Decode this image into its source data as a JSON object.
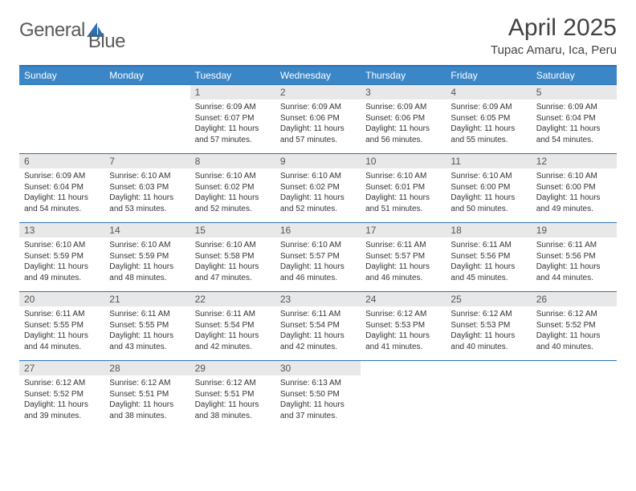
{
  "brand": {
    "word1": "General",
    "word2": "Blue"
  },
  "title": "April 2025",
  "location": "Tupac Amaru, Ica, Peru",
  "colors": {
    "header_bg": "#3b86c7",
    "header_text": "#ffffff",
    "border": "#2a72b5",
    "daynum_bg": "#e8e8e8",
    "text": "#333333"
  },
  "weekdays": [
    "Sunday",
    "Monday",
    "Tuesday",
    "Wednesday",
    "Thursday",
    "Friday",
    "Saturday"
  ],
  "weeks": [
    [
      null,
      null,
      {
        "n": "1",
        "sr": "6:09 AM",
        "ss": "6:07 PM",
        "dl": "11 hours and 57 minutes."
      },
      {
        "n": "2",
        "sr": "6:09 AM",
        "ss": "6:06 PM",
        "dl": "11 hours and 57 minutes."
      },
      {
        "n": "3",
        "sr": "6:09 AM",
        "ss": "6:06 PM",
        "dl": "11 hours and 56 minutes."
      },
      {
        "n": "4",
        "sr": "6:09 AM",
        "ss": "6:05 PM",
        "dl": "11 hours and 55 minutes."
      },
      {
        "n": "5",
        "sr": "6:09 AM",
        "ss": "6:04 PM",
        "dl": "11 hours and 54 minutes."
      }
    ],
    [
      {
        "n": "6",
        "sr": "6:09 AM",
        "ss": "6:04 PM",
        "dl": "11 hours and 54 minutes."
      },
      {
        "n": "7",
        "sr": "6:10 AM",
        "ss": "6:03 PM",
        "dl": "11 hours and 53 minutes."
      },
      {
        "n": "8",
        "sr": "6:10 AM",
        "ss": "6:02 PM",
        "dl": "11 hours and 52 minutes."
      },
      {
        "n": "9",
        "sr": "6:10 AM",
        "ss": "6:02 PM",
        "dl": "11 hours and 52 minutes."
      },
      {
        "n": "10",
        "sr": "6:10 AM",
        "ss": "6:01 PM",
        "dl": "11 hours and 51 minutes."
      },
      {
        "n": "11",
        "sr": "6:10 AM",
        "ss": "6:00 PM",
        "dl": "11 hours and 50 minutes."
      },
      {
        "n": "12",
        "sr": "6:10 AM",
        "ss": "6:00 PM",
        "dl": "11 hours and 49 minutes."
      }
    ],
    [
      {
        "n": "13",
        "sr": "6:10 AM",
        "ss": "5:59 PM",
        "dl": "11 hours and 49 minutes."
      },
      {
        "n": "14",
        "sr": "6:10 AM",
        "ss": "5:59 PM",
        "dl": "11 hours and 48 minutes."
      },
      {
        "n": "15",
        "sr": "6:10 AM",
        "ss": "5:58 PM",
        "dl": "11 hours and 47 minutes."
      },
      {
        "n": "16",
        "sr": "6:10 AM",
        "ss": "5:57 PM",
        "dl": "11 hours and 46 minutes."
      },
      {
        "n": "17",
        "sr": "6:11 AM",
        "ss": "5:57 PM",
        "dl": "11 hours and 46 minutes."
      },
      {
        "n": "18",
        "sr": "6:11 AM",
        "ss": "5:56 PM",
        "dl": "11 hours and 45 minutes."
      },
      {
        "n": "19",
        "sr": "6:11 AM",
        "ss": "5:56 PM",
        "dl": "11 hours and 44 minutes."
      }
    ],
    [
      {
        "n": "20",
        "sr": "6:11 AM",
        "ss": "5:55 PM",
        "dl": "11 hours and 44 minutes."
      },
      {
        "n": "21",
        "sr": "6:11 AM",
        "ss": "5:55 PM",
        "dl": "11 hours and 43 minutes."
      },
      {
        "n": "22",
        "sr": "6:11 AM",
        "ss": "5:54 PM",
        "dl": "11 hours and 42 minutes."
      },
      {
        "n": "23",
        "sr": "6:11 AM",
        "ss": "5:54 PM",
        "dl": "11 hours and 42 minutes."
      },
      {
        "n": "24",
        "sr": "6:12 AM",
        "ss": "5:53 PM",
        "dl": "11 hours and 41 minutes."
      },
      {
        "n": "25",
        "sr": "6:12 AM",
        "ss": "5:53 PM",
        "dl": "11 hours and 40 minutes."
      },
      {
        "n": "26",
        "sr": "6:12 AM",
        "ss": "5:52 PM",
        "dl": "11 hours and 40 minutes."
      }
    ],
    [
      {
        "n": "27",
        "sr": "6:12 AM",
        "ss": "5:52 PM",
        "dl": "11 hours and 39 minutes."
      },
      {
        "n": "28",
        "sr": "6:12 AM",
        "ss": "5:51 PM",
        "dl": "11 hours and 38 minutes."
      },
      {
        "n": "29",
        "sr": "6:12 AM",
        "ss": "5:51 PM",
        "dl": "11 hours and 38 minutes."
      },
      {
        "n": "30",
        "sr": "6:13 AM",
        "ss": "5:50 PM",
        "dl": "11 hours and 37 minutes."
      },
      null,
      null,
      null
    ]
  ],
  "labels": {
    "sunrise": "Sunrise:",
    "sunset": "Sunset:",
    "daylight": "Daylight:"
  }
}
